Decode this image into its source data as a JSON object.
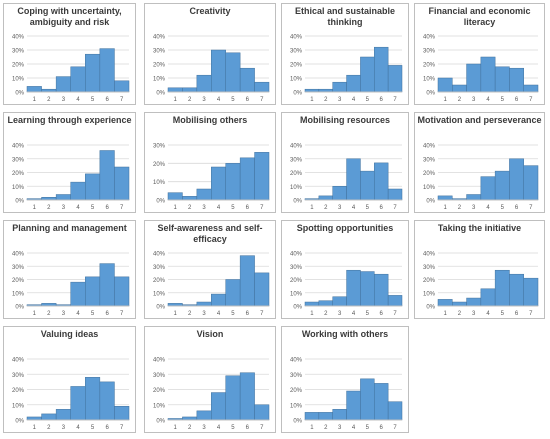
{
  "colors": {
    "bar": "#5b9bd5",
    "bar_edge": "#41719c",
    "grid": "#d9d9d9",
    "axis": "#bfbfbf",
    "panel_border": "#bfbfbf",
    "text": "#595959"
  },
  "chart_data": [
    {
      "type": "bar",
      "title": "Coping with uncertainty, ambiguity and risk",
      "categories": [
        "1",
        "2",
        "3",
        "4",
        "5",
        "6",
        "7"
      ],
      "values": [
        4,
        2,
        11,
        18,
        27,
        31,
        8
      ],
      "y_ticks": [
        "0%",
        "10%",
        "20%",
        "30%",
        "40%"
      ],
      "ylim": [
        0,
        40
      ],
      "grid": true
    },
    {
      "type": "bar",
      "title": "Creativity",
      "categories": [
        "1",
        "2",
        "3",
        "4",
        "5",
        "6",
        "7"
      ],
      "values": [
        3,
        3,
        12,
        30,
        28,
        17,
        7
      ],
      "y_ticks": [
        "0%",
        "10%",
        "20%",
        "30%",
        "40%"
      ],
      "ylim": [
        0,
        40
      ],
      "grid": true
    },
    {
      "type": "bar",
      "title": "Ethical and sustainable thinking",
      "categories": [
        "1",
        "2",
        "3",
        "4",
        "5",
        "6",
        "7"
      ],
      "values": [
        2,
        2,
        7,
        12,
        25,
        32,
        19
      ],
      "y_ticks": [
        "0%",
        "10%",
        "20%",
        "30%",
        "40%"
      ],
      "ylim": [
        0,
        40
      ],
      "grid": true
    },
    {
      "type": "bar",
      "title": "Financial and economic literacy",
      "categories": [
        "1",
        "2",
        "3",
        "4",
        "5",
        "6",
        "7"
      ],
      "values": [
        10,
        5,
        20,
        25,
        18,
        17,
        5
      ],
      "y_ticks": [
        "0%",
        "10%",
        "20%",
        "30%",
        "40%"
      ],
      "ylim": [
        0,
        40
      ],
      "grid": true
    },
    {
      "type": "bar",
      "title": "Learning through experience",
      "categories": [
        "1",
        "2",
        "3",
        "4",
        "5",
        "6",
        "7"
      ],
      "values": [
        1,
        2,
        4,
        13,
        19,
        36,
        24
      ],
      "y_ticks": [
        "0%",
        "10%",
        "20%",
        "30%",
        "40%"
      ],
      "ylim": [
        0,
        40
      ],
      "grid": true
    },
    {
      "type": "bar",
      "title": "Mobilising others",
      "categories": [
        "1",
        "2",
        "3",
        "4",
        "5",
        "6",
        "7"
      ],
      "values": [
        4,
        2,
        6,
        18,
        20,
        23,
        26
      ],
      "y_ticks": [
        "0%",
        "10%",
        "20%",
        "30%"
      ],
      "ylim": [
        0,
        30
      ],
      "grid": true
    },
    {
      "type": "bar",
      "title": "Mobilising resources",
      "categories": [
        "1",
        "2",
        "3",
        "4",
        "5",
        "6",
        "7"
      ],
      "values": [
        1,
        3,
        10,
        30,
        21,
        27,
        8
      ],
      "y_ticks": [
        "0%",
        "10%",
        "20%",
        "30%",
        "40%"
      ],
      "ylim": [
        0,
        40
      ],
      "grid": true
    },
    {
      "type": "bar",
      "title": "Motivation and perseverance",
      "categories": [
        "1",
        "2",
        "3",
        "4",
        "5",
        "6",
        "7"
      ],
      "values": [
        3,
        1,
        4,
        17,
        21,
        30,
        25
      ],
      "y_ticks": [
        "0%",
        "10%",
        "20%",
        "30%",
        "40%"
      ],
      "ylim": [
        0,
        40
      ],
      "grid": true
    },
    {
      "type": "bar",
      "title": "Planning and management",
      "categories": [
        "1",
        "2",
        "3",
        "4",
        "5",
        "6",
        "7"
      ],
      "values": [
        1,
        2,
        1,
        18,
        22,
        32,
        22
      ],
      "y_ticks": [
        "0%",
        "10%",
        "20%",
        "30%",
        "40%"
      ],
      "ylim": [
        0,
        40
      ],
      "grid": true
    },
    {
      "type": "bar",
      "title": "Self-awareness and self-efficacy",
      "categories": [
        "1",
        "2",
        "3",
        "4",
        "5",
        "6",
        "7"
      ],
      "values": [
        2,
        1,
        3,
        9,
        20,
        38,
        25
      ],
      "y_ticks": [
        "0%",
        "10%",
        "20%",
        "30%",
        "40%"
      ],
      "ylim": [
        0,
        40
      ],
      "grid": true
    },
    {
      "type": "bar",
      "title": "Spotting opportunities",
      "categories": [
        "1",
        "2",
        "3",
        "4",
        "5",
        "6",
        "7"
      ],
      "values": [
        3,
        4,
        7,
        27,
        26,
        24,
        8
      ],
      "y_ticks": [
        "0%",
        "10%",
        "20%",
        "30%",
        "40%"
      ],
      "ylim": [
        0,
        40
      ],
      "grid": true
    },
    {
      "type": "bar",
      "title": "Taking the initiative",
      "categories": [
        "1",
        "2",
        "3",
        "4",
        "5",
        "6",
        "7"
      ],
      "values": [
        5,
        3,
        6,
        13,
        27,
        24,
        21
      ],
      "y_ticks": [
        "0%",
        "10%",
        "20%",
        "30%",
        "40%"
      ],
      "ylim": [
        0,
        40
      ],
      "grid": true
    },
    {
      "type": "bar",
      "title": "Valuing ideas",
      "categories": [
        "1",
        "2",
        "3",
        "4",
        "5",
        "6",
        "7"
      ],
      "values": [
        2,
        4,
        7,
        22,
        28,
        25,
        9
      ],
      "y_ticks": [
        "0%",
        "10%",
        "20%",
        "30%",
        "40%"
      ],
      "ylim": [
        0,
        40
      ],
      "grid": true
    },
    {
      "type": "bar",
      "title": "Vision",
      "categories": [
        "1",
        "2",
        "3",
        "4",
        "5",
        "6",
        "7"
      ],
      "values": [
        1,
        2,
        6,
        18,
        29,
        31,
        10
      ],
      "y_ticks": [
        "0%",
        "10%",
        "20%",
        "30%",
        "40%"
      ],
      "ylim": [
        0,
        40
      ],
      "grid": true
    },
    {
      "type": "bar",
      "title": "Working with others",
      "categories": [
        "1",
        "2",
        "3",
        "4",
        "5",
        "6",
        "7"
      ],
      "values": [
        5,
        5,
        7,
        19,
        27,
        24,
        12
      ],
      "y_ticks": [
        "0%",
        "10%",
        "20%",
        "30%",
        "40%"
      ],
      "ylim": [
        0,
        40
      ],
      "grid": true
    }
  ]
}
